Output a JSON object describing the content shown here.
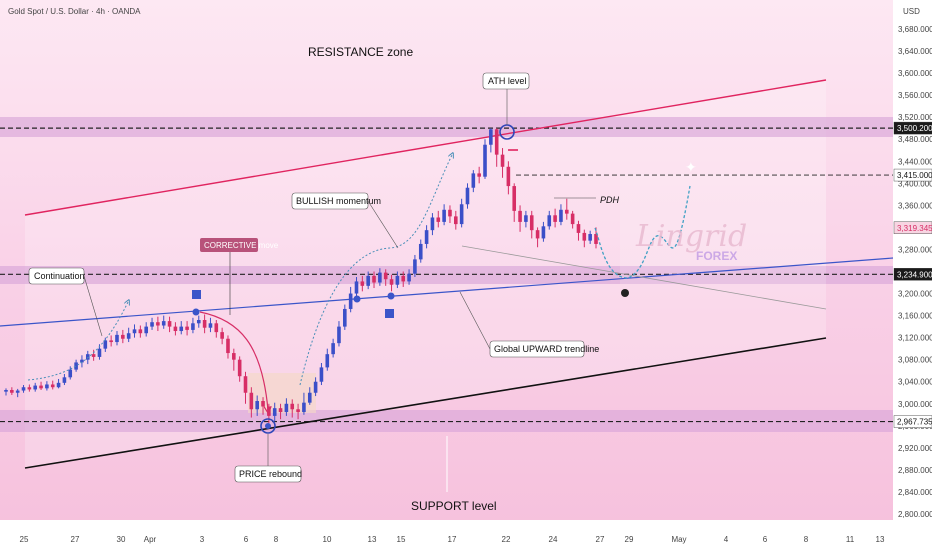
{
  "header": {
    "symbol_title": "Gold Spot / U.S. Dollar · 4h · OANDA",
    "currency": "USD"
  },
  "chart_data": {
    "type": "candlestick",
    "y_axis": {
      "ticks": [
        "3,680.000",
        "3,640.000",
        "3,600.000",
        "3,560.000",
        "3,520.000",
        "3,480.000",
        "3,440.000",
        "3,400.000",
        "3,360.000",
        "3,320.000",
        "3,280.000",
        "3,240.000",
        "3,200.000",
        "3,160.000",
        "3,120.000",
        "3,080.000",
        "3,040.000",
        "3,000.000",
        "2,960.000",
        "2,920.000",
        "2,880.000",
        "2,840.000",
        "2,800.000"
      ],
      "tick_values": [
        3680,
        3640,
        3600,
        3560,
        3520,
        3480,
        3440,
        3400,
        3360,
        3320,
        3280,
        3240,
        3200,
        3160,
        3120,
        3080,
        3040,
        3000,
        2960,
        2920,
        2880,
        2840,
        2800
      ],
      "ylim": [
        2780,
        3700
      ]
    },
    "x_axis": {
      "labels": [
        "25",
        "27",
        "30",
        "Apr",
        "3",
        "6",
        "8",
        "10",
        "13",
        "15",
        "17",
        "22",
        "24",
        "27",
        "29",
        "May",
        "4",
        "6",
        "8",
        "11",
        "13"
      ]
    },
    "price_labels": [
      {
        "text": "3,500.200",
        "value": 3500.2,
        "style": "dark"
      },
      {
        "text": "3,415.000",
        "value": 3415,
        "style": "light"
      },
      {
        "text": "3,319.345",
        "value": 3319.345,
        "style": "red"
      },
      {
        "text": "3,234.900",
        "value": 3234.9,
        "style": "dark"
      },
      {
        "text": "2,967.735",
        "value": 2967.735,
        "style": "light"
      }
    ],
    "levels": {
      "resistance": 3500.2,
      "support": 2967.735,
      "mid": 3234.9,
      "pdh": 3415
    },
    "annotations": {
      "resistance_zone": "RESISTANCE zone",
      "ath_level": "ATH level",
      "bullish_momentum": "BULLISH momentum",
      "corrective_move": "CORRECTIVE move",
      "continuation": "Continuation",
      "global_trendline": "Global UPWARD trendline",
      "price_rebound": "PRICE rebound",
      "support_level": "SUPPORT level",
      "pdh": "PDH"
    },
    "candles": [
      [
        3022,
        3025,
        3015,
        3028
      ],
      [
        3025,
        3020,
        3016,
        3030
      ],
      [
        3020,
        3024,
        3012,
        3027
      ],
      [
        3024,
        3030,
        3020,
        3034
      ],
      [
        3030,
        3026,
        3022,
        3035
      ],
      [
        3026,
        3033,
        3022,
        3038
      ],
      [
        3033,
        3028,
        3025,
        3040
      ],
      [
        3028,
        3035,
        3024,
        3041
      ],
      [
        3035,
        3030,
        3026,
        3042
      ],
      [
        3030,
        3038,
        3028,
        3045
      ],
      [
        3038,
        3048,
        3034,
        3054
      ],
      [
        3048,
        3062,
        3044,
        3068
      ],
      [
        3062,
        3075,
        3058,
        3080
      ],
      [
        3075,
        3080,
        3066,
        3088
      ],
      [
        3080,
        3090,
        3072,
        3096
      ],
      [
        3090,
        3085,
        3078,
        3098
      ],
      [
        3085,
        3100,
        3080,
        3108
      ],
      [
        3100,
        3115,
        3094,
        3120
      ],
      [
        3115,
        3112,
        3104,
        3124
      ],
      [
        3112,
        3125,
        3106,
        3132
      ],
      [
        3125,
        3118,
        3110,
        3134
      ],
      [
        3118,
        3128,
        3112,
        3138
      ],
      [
        3128,
        3135,
        3120,
        3144
      ],
      [
        3135,
        3128,
        3120,
        3142
      ],
      [
        3128,
        3140,
        3122,
        3148
      ],
      [
        3140,
        3148,
        3134,
        3156
      ],
      [
        3148,
        3142,
        3132,
        3158
      ],
      [
        3142,
        3150,
        3136,
        3160
      ],
      [
        3150,
        3140,
        3130,
        3158
      ],
      [
        3140,
        3132,
        3124,
        3148
      ],
      [
        3132,
        3140,
        3126,
        3150
      ],
      [
        3140,
        3134,
        3124,
        3150
      ],
      [
        3134,
        3146,
        3128,
        3156
      ],
      [
        3146,
        3152,
        3138,
        3160
      ],
      [
        3152,
        3138,
        3128,
        3162
      ],
      [
        3138,
        3146,
        3130,
        3156
      ],
      [
        3146,
        3130,
        3120,
        3152
      ],
      [
        3130,
        3118,
        3108,
        3138
      ],
      [
        3118,
        3092,
        3082,
        3124
      ],
      [
        3092,
        3080,
        3060,
        3100
      ],
      [
        3080,
        3050,
        3040,
        3086
      ],
      [
        3050,
        3020,
        3000,
        3058
      ],
      [
        3020,
        2990,
        2975,
        3030
      ],
      [
        2990,
        3005,
        2978,
        3015
      ],
      [
        3005,
        2995,
        2980,
        3012
      ],
      [
        2995,
        2978,
        2965,
        3000
      ],
      [
        2978,
        2992,
        2968,
        3002
      ],
      [
        2992,
        2985,
        2972,
        3000
      ],
      [
        2985,
        3000,
        2978,
        3010
      ],
      [
        3000,
        2990,
        2975,
        3008
      ],
      [
        2990,
        2985,
        2972,
        3000
      ],
      [
        2985,
        3002,
        2980,
        3020
      ],
      [
        3002,
        3020,
        2998,
        3030
      ],
      [
        3020,
        3040,
        3014,
        3048
      ],
      [
        3040,
        3066,
        3034,
        3074
      ],
      [
        3066,
        3090,
        3060,
        3100
      ],
      [
        3090,
        3110,
        3084,
        3118
      ],
      [
        3110,
        3140,
        3104,
        3150
      ],
      [
        3140,
        3172,
        3134,
        3180
      ],
      [
        3172,
        3200,
        3166,
        3212
      ],
      [
        3200,
        3222,
        3192,
        3230
      ],
      [
        3222,
        3214,
        3204,
        3232
      ],
      [
        3214,
        3232,
        3208,
        3240
      ],
      [
        3232,
        3220,
        3210,
        3240
      ],
      [
        3220,
        3238,
        3214,
        3246
      ],
      [
        3238,
        3226,
        3214,
        3244
      ],
      [
        3226,
        3216,
        3204,
        3234
      ],
      [
        3216,
        3232,
        3210,
        3240
      ],
      [
        3232,
        3222,
        3212,
        3240
      ],
      [
        3222,
        3236,
        3216,
        3244
      ],
      [
        3236,
        3262,
        3230,
        3270
      ],
      [
        3262,
        3290,
        3256,
        3298
      ],
      [
        3290,
        3315,
        3282,
        3324
      ],
      [
        3315,
        3338,
        3306,
        3346
      ],
      [
        3338,
        3330,
        3320,
        3350
      ],
      [
        3330,
        3352,
        3324,
        3362
      ],
      [
        3352,
        3340,
        3328,
        3360
      ],
      [
        3340,
        3326,
        3316,
        3350
      ],
      [
        3326,
        3362,
        3320,
        3372
      ],
      [
        3362,
        3392,
        3354,
        3400
      ],
      [
        3392,
        3418,
        3384,
        3424
      ],
      [
        3418,
        3412,
        3400,
        3430
      ],
      [
        3412,
        3470,
        3408,
        3480
      ],
      [
        3470,
        3498,
        3456,
        3500
      ],
      [
        3498,
        3452,
        3430,
        3500
      ],
      [
        3452,
        3430,
        3410,
        3464
      ],
      [
        3430,
        3395,
        3380,
        3440
      ],
      [
        3395,
        3350,
        3330,
        3400
      ],
      [
        3350,
        3330,
        3312,
        3360
      ],
      [
        3330,
        3342,
        3320,
        3350
      ],
      [
        3342,
        3315,
        3300,
        3350
      ],
      [
        3315,
        3300,
        3284,
        3320
      ],
      [
        3300,
        3322,
        3294,
        3330
      ],
      [
        3322,
        3342,
        3316,
        3350
      ],
      [
        3342,
        3330,
        3320,
        3354
      ],
      [
        3330,
        3352,
        3324,
        3362
      ],
      [
        3352,
        3345,
        3334,
        3372
      ],
      [
        3345,
        3326,
        3318,
        3350
      ],
      [
        3326,
        3310,
        3296,
        3332
      ],
      [
        3310,
        3296,
        3284,
        3316
      ],
      [
        3296,
        3308,
        3290,
        3314
      ],
      [
        3308,
        3290,
        3282,
        3320
      ]
    ]
  }
}
